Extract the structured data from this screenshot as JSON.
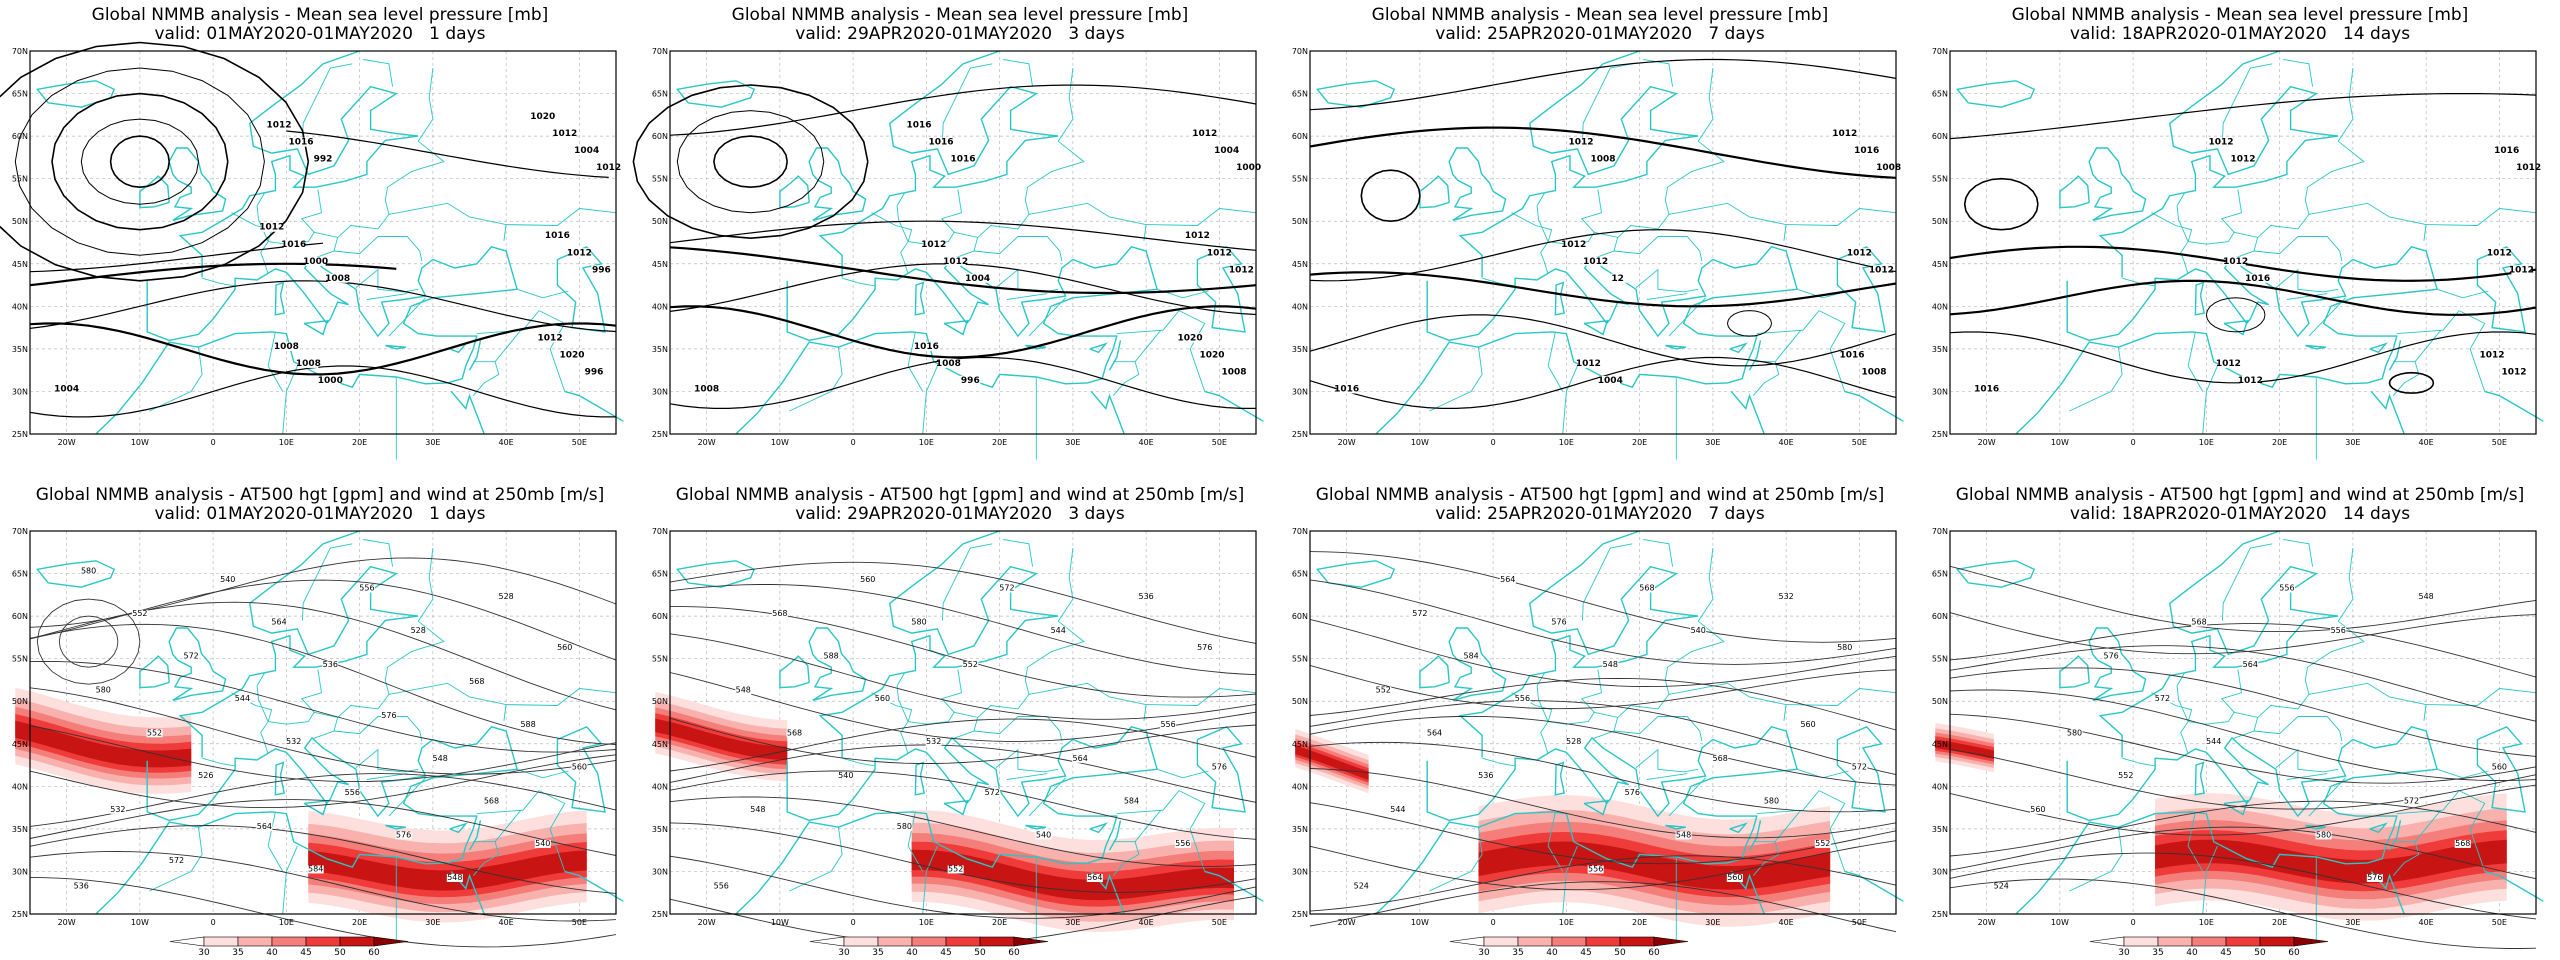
{
  "top_row": [
    {
      "title": "Global NMMB analysis - Mean sea level pressure [mb]",
      "subtitle": "valid: 01MAY2020-01MAY2020   1 days",
      "contour_labels": [
        "1004",
        "1008",
        "1012",
        "1000",
        "996",
        "992",
        "996",
        "1000",
        "1004",
        "1008",
        "1012",
        "1016",
        "1020",
        "1016",
        "1012",
        "1008",
        "1016",
        "1012",
        "1012",
        "1012",
        "1020"
      ]
    },
    {
      "title": "Global NMMB analysis - Mean sea level pressure [mb]",
      "subtitle": "valid: 29APR2020-01MAY2020   3 days",
      "contour_labels": [
        "1008",
        "1004",
        "1000",
        "996",
        "1012",
        "1016",
        "1008",
        "1012",
        "1004",
        "1008",
        "1012",
        "1016",
        "1020",
        "1012",
        "1012",
        "1016",
        "1012",
        "1016",
        "1020"
      ]
    },
    {
      "title": "Global NMMB analysis - Mean sea level pressure [mb]",
      "subtitle": "valid: 25APR2020-01MAY2020   7 days",
      "contour_labels": [
        "1016",
        "12",
        "1008",
        "1004",
        "1012",
        "1008",
        "1008",
        "1012",
        "1016",
        "1012",
        "1012",
        "1012",
        "1016",
        "1012",
        "1012"
      ]
    },
    {
      "title": "Global NMMB analysis - Mean sea level pressure [mb]",
      "subtitle": "valid: 18APR2020-01MAY2020   14 days",
      "contour_labels": [
        "1016",
        "1016",
        "1012",
        "1012",
        "1012",
        "1012",
        "1012",
        "1012",
        "1016",
        "1012",
        "1012",
        "1012",
        "1012"
      ]
    }
  ],
  "bottom_row": [
    {
      "title": "Global NMMB analysis - AT500 hgt [gpm] and wind at 250mb [m/s]",
      "subtitle": "valid: 01MAY2020-01MAY2020   1 days",
      "contour_labels": [
        "536",
        "532",
        "528",
        "526",
        "528",
        "532",
        "536",
        "540",
        "544",
        "548",
        "552",
        "556",
        "560",
        "564",
        "568",
        "572",
        "576",
        "580",
        "584",
        "588",
        "540",
        "548",
        "552",
        "556",
        "560",
        "564",
        "568",
        "572",
        "576",
        "580"
      ]
    },
    {
      "title": "Global NMMB analysis - AT500 hgt [gpm] and wind at 250mb [m/s]",
      "subtitle": "valid: 29APR2020-01MAY2020   3 days",
      "contour_labels": [
        "556",
        "532",
        "536",
        "540",
        "544",
        "548",
        "552",
        "556",
        "560",
        "564",
        "568",
        "572",
        "576",
        "580",
        "584",
        "588",
        "540",
        "548",
        "552",
        "556",
        "560",
        "564",
        "568",
        "572",
        "576",
        "580"
      ]
    },
    {
      "title": "Global NMMB analysis - AT500 hgt [gpm] and wind at 250mb [m/s]",
      "subtitle": "valid: 25APR2020-01MAY2020   7 days",
      "contour_labels": [
        "524",
        "528",
        "532",
        "536",
        "540",
        "544",
        "548",
        "552",
        "556",
        "560",
        "564",
        "568",
        "572",
        "576",
        "580",
        "584",
        "548",
        "552",
        "556",
        "560",
        "564",
        "568",
        "572",
        "576",
        "580"
      ]
    },
    {
      "title": "Global NMMB analysis - AT500 hgt [gpm] and wind at 250mb [m/s]",
      "subtitle": "valid: 18APR2020-01MAY2020   14 days",
      "contour_labels": [
        "524",
        "544",
        "548",
        "552",
        "556",
        "560",
        "564",
        "568",
        "572",
        "576",
        "580",
        "556",
        "560",
        "568",
        "572",
        "576",
        "580"
      ]
    }
  ],
  "axes": {
    "lat_ticks": [
      "70N",
      "65N",
      "60N",
      "55N",
      "50N",
      "45N",
      "40N",
      "35N",
      "30N",
      "25N"
    ],
    "lon_ticks": [
      "20W",
      "10W",
      "0",
      "10E",
      "20E",
      "30E",
      "40E",
      "50E"
    ]
  },
  "colorbar": {
    "ticks": [
      "30",
      "35",
      "40",
      "45",
      "50",
      "60"
    ],
    "colors": [
      "#ffffff",
      "#fde0dd",
      "#f9b1ae",
      "#f47e7a",
      "#ef3b3a",
      "#c91414",
      "#8a0000"
    ]
  },
  "colors": {
    "coast": "#29c6c6",
    "grid": "#bbbbbb",
    "contour": "#000000",
    "frame": "#000000"
  }
}
